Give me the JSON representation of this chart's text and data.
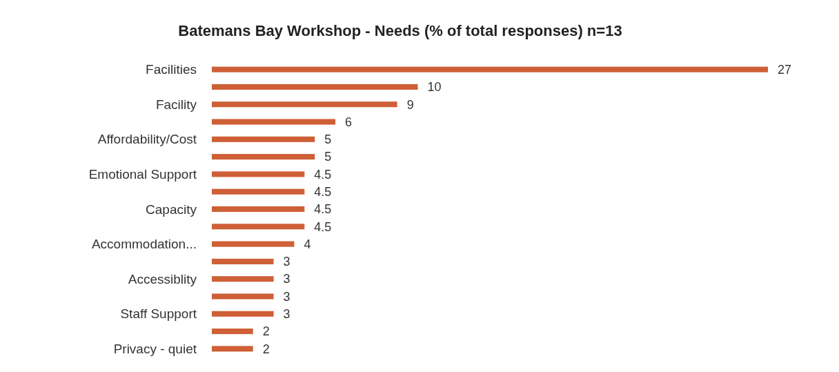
{
  "chart_data": {
    "type": "bar",
    "orientation": "horizontal",
    "title": "Batemans Bay Workshop - Needs (% of total responses) n=13",
    "categories": [
      "Facilities",
      null,
      "Facility",
      null,
      "Affordability/Cost",
      null,
      "Emotional Support",
      null,
      "Capacity",
      null,
      "Accommodation...",
      null,
      "Accessiblity",
      null,
      "Staff Support",
      null,
      "Privacy - quiet"
    ],
    "values": [
      27,
      10,
      9,
      6,
      5,
      5,
      4.5,
      4.5,
      4.5,
      4.5,
      4,
      3,
      3,
      3,
      3,
      2,
      2
    ],
    "color": "#cf5f37",
    "data_labels": true
  }
}
